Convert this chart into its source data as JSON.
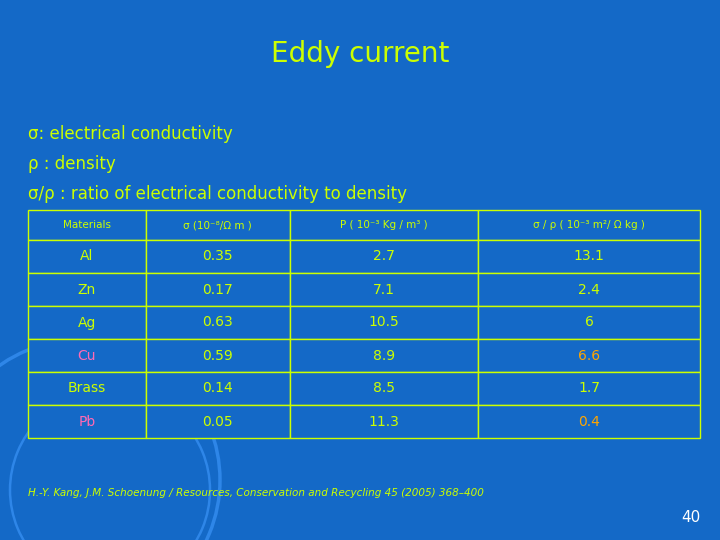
{
  "title": "Eddy current",
  "title_color": "#CCFF00",
  "bg_color": "#1469C7",
  "text_color": "#CCFF00",
  "bullet_lines": [
    "σ: electrical conductivity",
    "ρ : density",
    "σ/ρ : ratio of electrical conductivity to density"
  ],
  "table_headers": [
    "Materials",
    "σ (10⁻⁸/Ω m )",
    "P ( 10⁻³ Kg / m³ )",
    "σ / ρ ( 10⁻³ m²/ Ω kg )"
  ],
  "table_data": [
    [
      "Al",
      "0.35",
      "2.7",
      "13.1"
    ],
    [
      "Zn",
      "0.17",
      "7.1",
      "2.4"
    ],
    [
      "Ag",
      "0.63",
      "10.5",
      "6"
    ],
    [
      "Cu",
      "0.59",
      "8.9",
      "6.6"
    ],
    [
      "Brass",
      "0.14",
      "8.5",
      "1.7"
    ],
    [
      "Pb",
      "0.05",
      "11.3",
      "0.4"
    ]
  ],
  "row_col0_colors": [
    "#CCFF00",
    "#CCFF00",
    "#CCFF00",
    "#FF69B4",
    "#CCFF00",
    "#FF69B4"
  ],
  "row_col3_colors": [
    "#CCFF00",
    "#CCFF00",
    "#CCFF00",
    "#FFA500",
    "#CCFF00",
    "#FFA500"
  ],
  "table_text_color": "#CCFF00",
  "table_border_color": "#CCFF00",
  "table_header_color": "#CCFF00",
  "footer_text": "H.-Y. Kang, J.M. Schoenung / Resources, Conservation and Recycling 45 (2005) 368–400",
  "footer_color": "#CCFF00",
  "page_number": "40",
  "page_number_color": "#FFFFFF",
  "arc_color": "#2E86E8"
}
